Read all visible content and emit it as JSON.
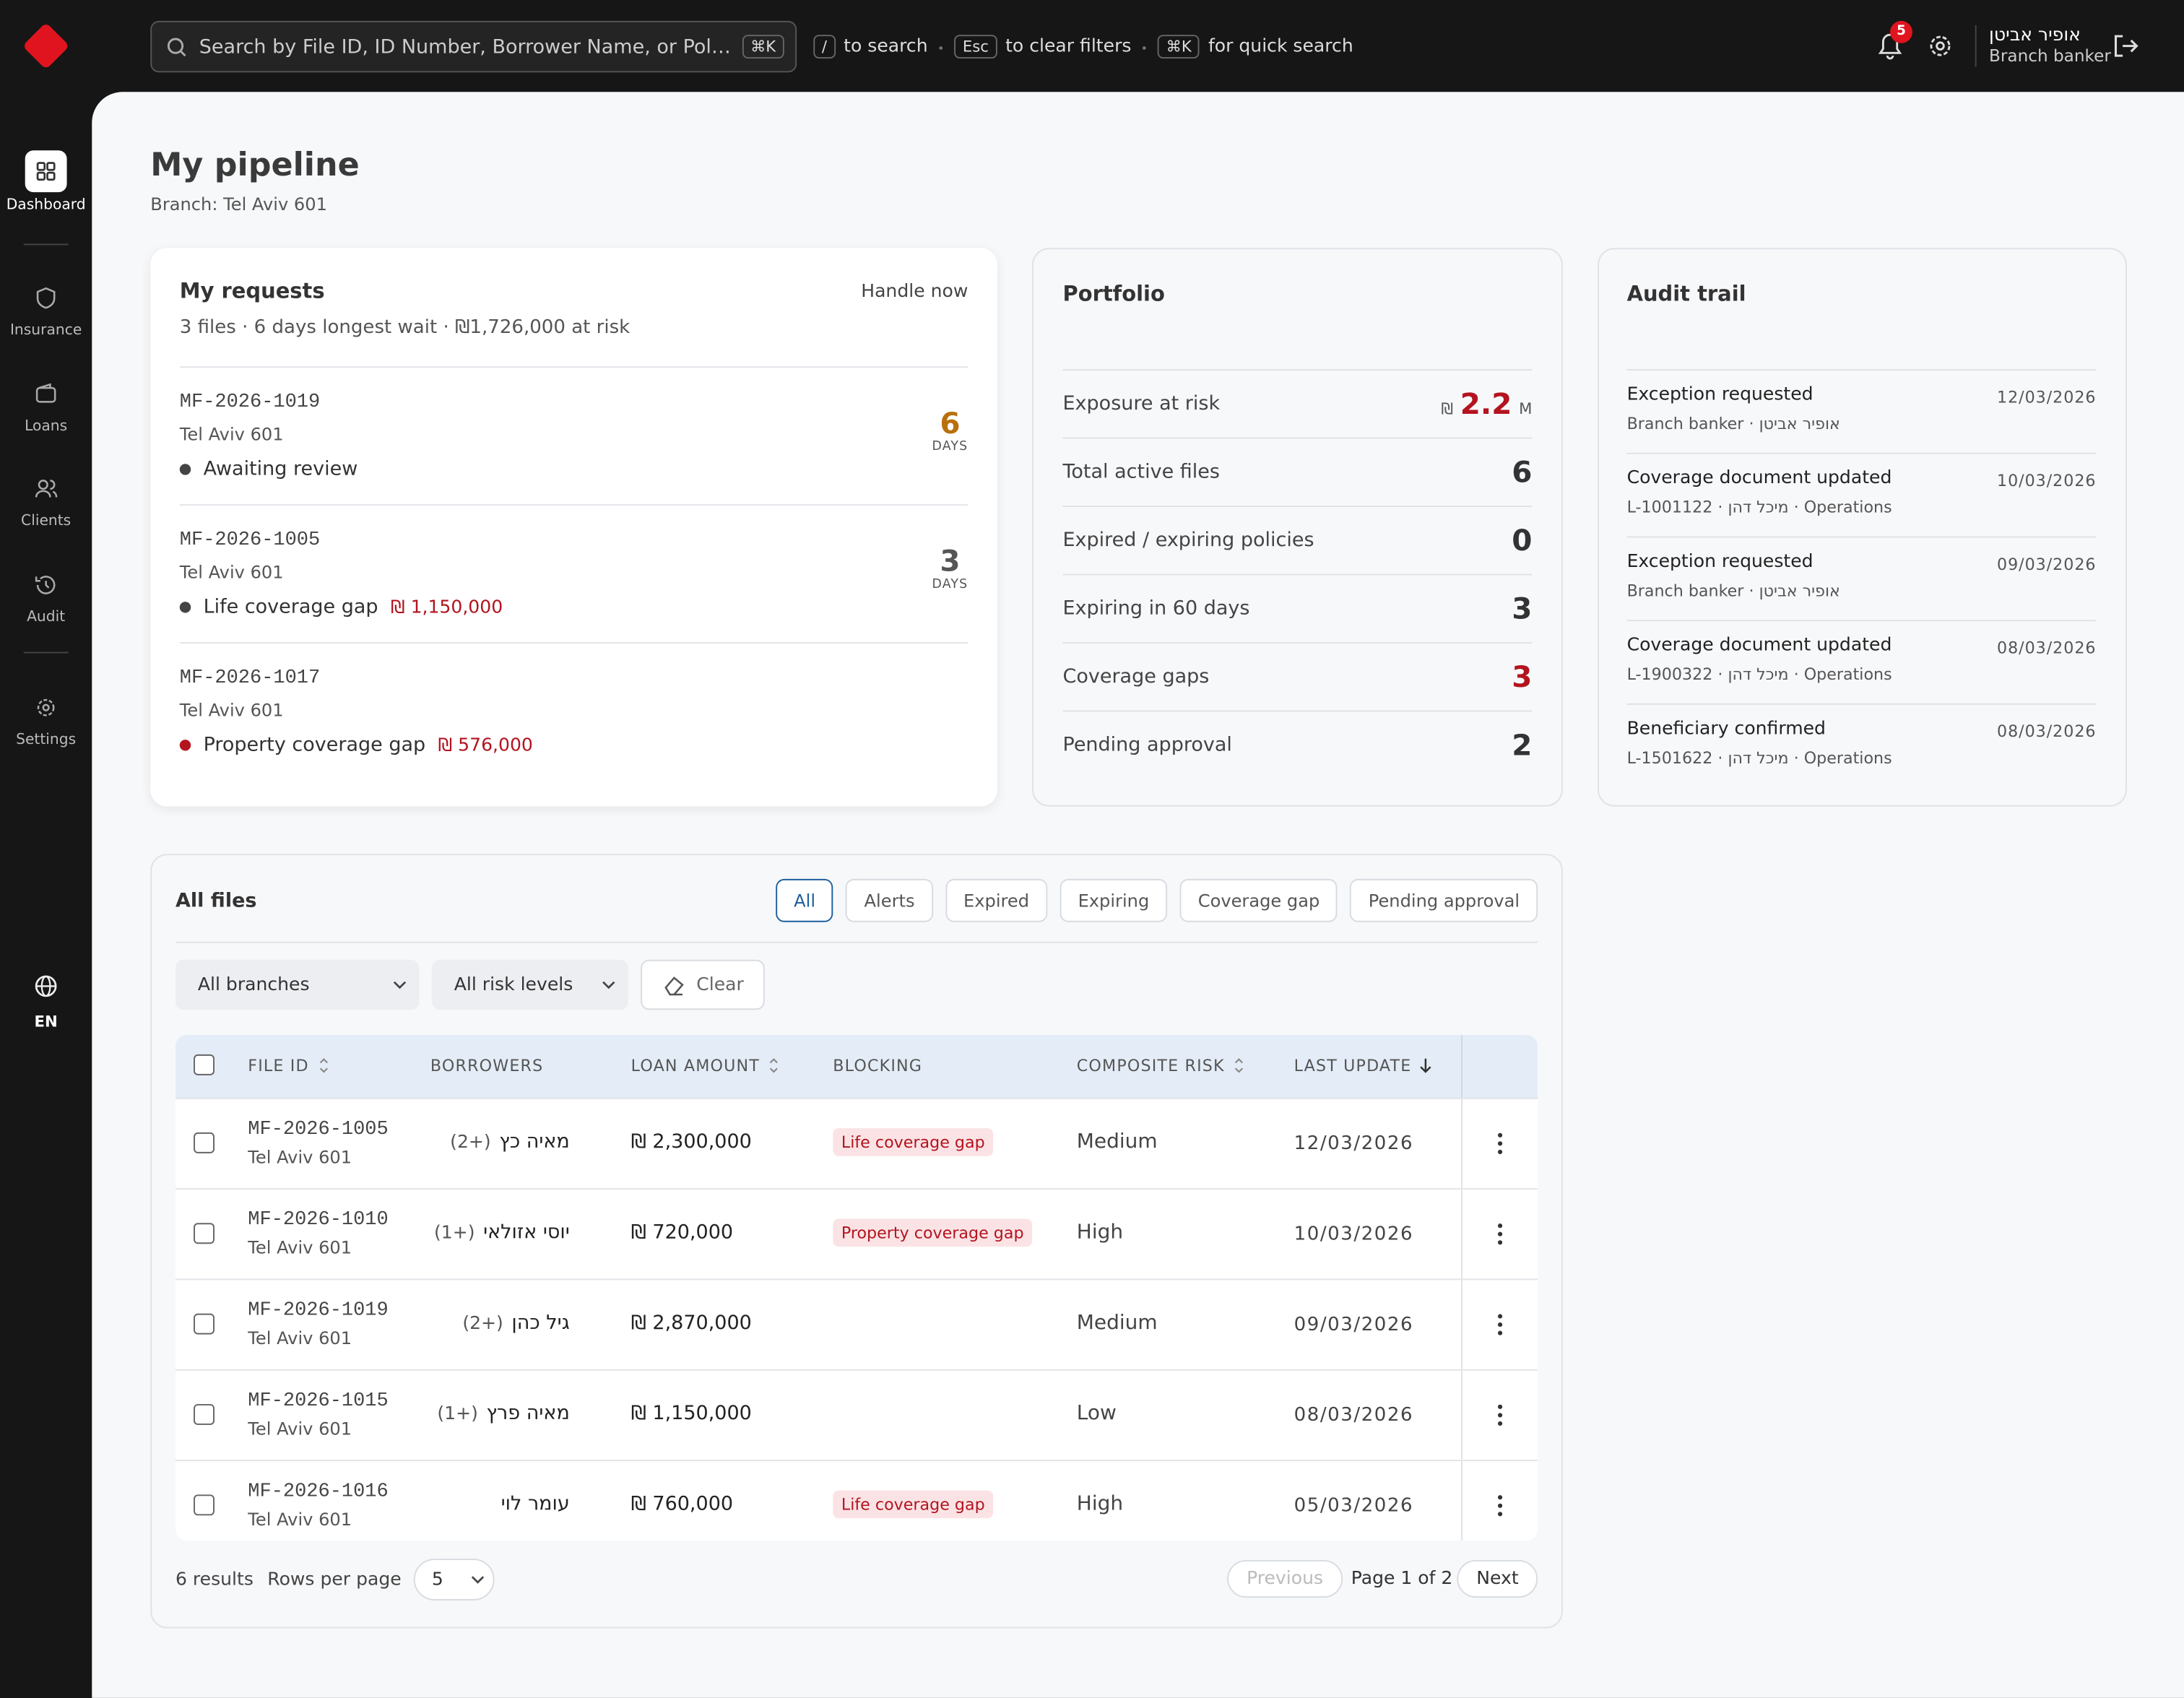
{
  "topbar": {
    "search_placeholder": "Search by File ID, ID Number, Borrower Name, or Policy...",
    "search_shortcut": "⌘K",
    "hints": [
      {
        "key": "/",
        "text": "to search"
      },
      {
        "key": "Esc",
        "text": "to clear filters"
      },
      {
        "key": "⌘K",
        "text": "for quick search"
      }
    ],
    "notifications": "5",
    "user": {
      "name": "אופיר אביטן",
      "role": "Branch banker"
    }
  },
  "sidebar": {
    "items": [
      "Dashboard",
      "Insurance",
      "Loans",
      "Clients",
      "Audit",
      "Settings"
    ],
    "language": "EN"
  },
  "header": {
    "title": "My pipeline",
    "subtitle": "Branch: Tel Aviv 601"
  },
  "requests": {
    "title": "My requests",
    "action": "Handle now",
    "summary": "3 files · 6 days longest wait · ₪1,726,000 at risk",
    "items": [
      {
        "id": "MF-2026-1019",
        "branch": "Tel Aviv 601",
        "status": "Awaiting review",
        "dot_color": "#444",
        "days": "6",
        "days_label": "DAYS",
        "days_color": "#b8700d"
      },
      {
        "id": "MF-2026-1005",
        "branch": "Tel Aviv 601",
        "status": "Life coverage gap",
        "amount": "₪ 1,150,000",
        "dot_color": "#444",
        "days": "3",
        "days_label": "DAYS",
        "days_color": "#555"
      },
      {
        "id": "MF-2026-1017",
        "branch": "Tel Aviv 601",
        "status": "Property coverage gap",
        "amount": "₪ 576,000",
        "dot_color": "#b3141f"
      }
    ]
  },
  "portfolio": {
    "title": "Portfolio",
    "rows": [
      {
        "label": "Exposure at risk",
        "currency": "₪",
        "value": "2.2",
        "unit": "M",
        "color": "#b3141f"
      },
      {
        "label": "Total active files",
        "value": "6",
        "color": "#333"
      },
      {
        "label": "Expired / expiring policies",
        "value": "0",
        "color": "#333"
      },
      {
        "label": "Expiring in 60 days",
        "value": "3",
        "color": "#333"
      },
      {
        "label": "Coverage gaps",
        "value": "3",
        "color": "#b3141f"
      },
      {
        "label": "Pending approval",
        "value": "2",
        "color": "#333"
      }
    ]
  },
  "audit": {
    "title": "Audit trail",
    "items": [
      {
        "title": "Exception requested",
        "detail": "אופיר אביטן · Branch banker",
        "date": "12/03/2026"
      },
      {
        "title": "Coverage document updated",
        "detail": "L-1001122 · מיכל דהן · Operations",
        "date": "10/03/2026"
      },
      {
        "title": "Exception requested",
        "detail": "אופיר אביטן · Branch banker",
        "date": "09/03/2026"
      },
      {
        "title": "Coverage document updated",
        "detail": "L-1900322 · מיכל דהן · Operations",
        "date": "08/03/2026"
      },
      {
        "title": "Beneficiary confirmed",
        "detail": "L-1501622 · מיכל דהן · Operations",
        "date": "08/03/2026"
      }
    ]
  },
  "files": {
    "title": "All files",
    "tabs": [
      "All",
      "Alerts",
      "Expired",
      "Expiring",
      "Coverage gap",
      "Pending approval"
    ],
    "filters": [
      "All branches",
      "All risk levels"
    ],
    "clear": "Clear",
    "columns": [
      "FILE ID",
      "BORROWERS",
      "LOAN AMOUNT",
      "BLOCKING",
      "COMPOSITE RISK",
      "LAST UPDATE"
    ],
    "rows": [
      {
        "id": "MF-2026-1005",
        "branch": "Tel Aviv 601",
        "borrower": "מאיה כץ",
        "extra": "(2+)",
        "amount": "₪ 2,300,000",
        "blocking": "Life coverage gap",
        "risk": "Medium",
        "updated": "12/03/2026"
      },
      {
        "id": "MF-2026-1010",
        "branch": "Tel Aviv 601",
        "borrower": "יוסי אזולאי",
        "extra": "(1+)",
        "amount": "₪ 720,000",
        "blocking": "Property coverage gap",
        "risk": "High",
        "updated": "10/03/2026"
      },
      {
        "id": "MF-2026-1019",
        "branch": "Tel Aviv 601",
        "borrower": "גיל כהן",
        "extra": "(2+)",
        "amount": "₪ 2,870,000",
        "risk": "Medium",
        "updated": "09/03/2026"
      },
      {
        "id": "MF-2026-1015",
        "branch": "Tel Aviv 601",
        "borrower": "מאיה פרץ",
        "extra": "(1+)",
        "amount": "₪ 1,150,000",
        "risk": "Low",
        "updated": "08/03/2026"
      },
      {
        "id": "MF-2026-1016",
        "branch": "Tel Aviv 601",
        "borrower": "עומר לוי",
        "amount": "₪ 760,000",
        "blocking": "Life coverage gap",
        "risk": "High",
        "updated": "05/03/2026"
      }
    ],
    "footer": {
      "results": "6 results",
      "rows_per_page": "Rows per page",
      "page_size": "5",
      "previous": "Previous",
      "page": "Page 1 of 2",
      "next": "Next"
    }
  }
}
